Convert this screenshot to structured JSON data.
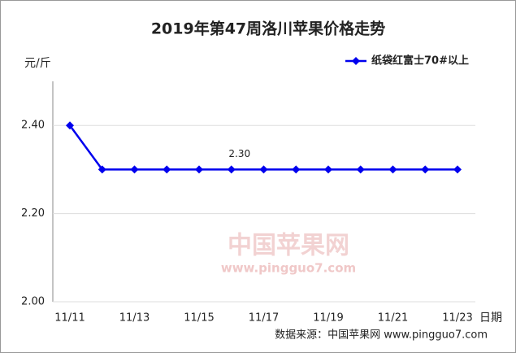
{
  "chart_data": {
    "type": "line",
    "title": "2019年第47周洛川苹果价格走势",
    "y_unit": "元/斤",
    "x_label": "日期",
    "source": "数据来源：中国苹果网 www.pingguo7.com",
    "watermark": [
      "中国苹果网",
      "www.pingguo7.com"
    ],
    "categories": [
      "11/11",
      null,
      "11/13",
      null,
      "11/15",
      null,
      "11/17",
      null,
      "11/19",
      null,
      "11/21",
      null,
      "11/23"
    ],
    "series": [
      {
        "name": "纸袋红富士70#以上",
        "color": "#0000ee",
        "values": [
          2.4,
          2.3,
          2.3,
          2.3,
          2.3,
          2.3,
          2.3,
          2.3,
          2.3,
          2.3,
          2.3,
          2.3,
          2.3
        ],
        "value_labels": [
          null,
          null,
          null,
          null,
          null,
          "2.30",
          null,
          null,
          null,
          null,
          null,
          null,
          null
        ]
      }
    ],
    "ylim": [
      2.0,
      2.5
    ],
    "yticks": [
      {
        "value": 2.0,
        "label": "2.00"
      },
      {
        "value": 2.2,
        "label": "2.20"
      },
      {
        "value": 2.4,
        "label": "2.40"
      }
    ],
    "grid": true,
    "legend": "top-right"
  }
}
